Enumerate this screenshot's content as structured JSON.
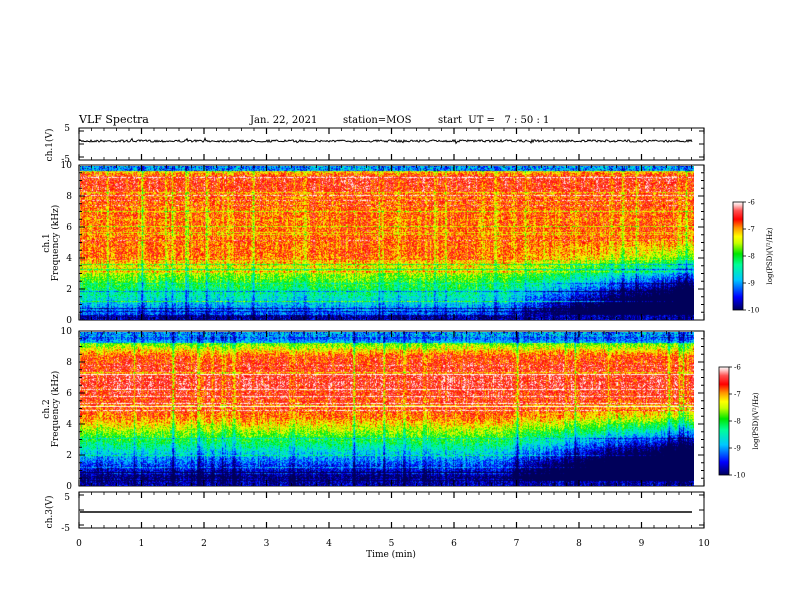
{
  "header": {
    "title": "VLF Spectra",
    "date": "Jan. 22, 2021",
    "station": "station=MOS",
    "start": "start  UT =   7 : 50 : 1"
  },
  "chart_data": [
    {
      "type": "line",
      "name": "ch1-waveform",
      "ylabel": "ch.1(V)",
      "ylim": [
        -5,
        5
      ],
      "yticks": [
        "5",
        "-5"
      ],
      "xlim": [
        0,
        10
      ]
    },
    {
      "type": "heatmap",
      "name": "ch1-spectrogram",
      "ylabel_line1": "ch.1",
      "ylabel_line2": "Frequency (kHz)",
      "ylim": [
        0,
        10
      ],
      "yticks": [
        "0",
        "2",
        "4",
        "6",
        "8",
        "10"
      ],
      "xlim": [
        0,
        9.85
      ],
      "colorbar": {
        "label": "log(PSD)(V²/Hz)",
        "range": [
          -10,
          -6
        ],
        "ticks": [
          "-6",
          "-7",
          "-8",
          "-9",
          "-10"
        ]
      }
    },
    {
      "type": "heatmap",
      "name": "ch2-spectrogram",
      "ylabel_line1": "ch.2",
      "ylabel_line2": "Frequency (kHz)",
      "ylim": [
        0,
        10
      ],
      "yticks": [
        "0",
        "2",
        "4",
        "6",
        "8",
        "10"
      ],
      "xlim": [
        0,
        9.85
      ],
      "colorbar": {
        "label": "log(PSD)(V²/Hz)",
        "range": [
          -10,
          -6
        ],
        "ticks": [
          "-6",
          "-7",
          "-8",
          "-9",
          "-10"
        ]
      }
    },
    {
      "type": "line",
      "name": "ch3-waveform",
      "ylabel": "ch.3(V)",
      "ylim": [
        -5,
        5
      ],
      "yticks": [
        "5",
        "-5"
      ],
      "xlim": [
        0,
        10
      ],
      "xlabel": "Time (min)",
      "xticks": [
        "0",
        "1",
        "2",
        "3",
        "4",
        "5",
        "6",
        "7",
        "8",
        "9",
        "10"
      ]
    }
  ],
  "colors": {
    "colormap": [
      "#00005a",
      "#0000ff",
      "#00c8ff",
      "#00ff96",
      "#00e600",
      "#c8ff00",
      "#ffff00",
      "#ff9600",
      "#ff0000",
      "#ff5050",
      "#ffc8c8",
      "#ffffff"
    ]
  }
}
